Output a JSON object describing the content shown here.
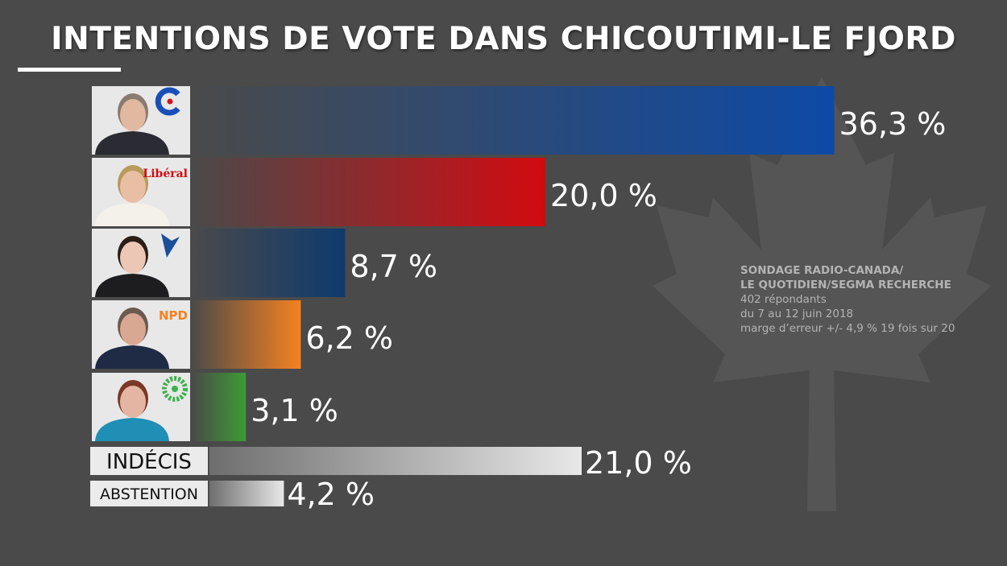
{
  "colors": {
    "background": "#4a4a4a",
    "cpc": "#0d4aa6",
    "liberal": "#d20a11",
    "bloc": "#0f3a6e",
    "npd": "#f58220",
    "green": "#3d9b35",
    "neutral": "#e6e6e6"
  },
  "chart_data": {
    "type": "bar",
    "orientation": "horizontal",
    "title": "INTENTIONS DE VOTE DANS CHICOUTIMI-LE FJORD",
    "unit": "%",
    "candidates": [
      {
        "party_icon": "conservative-logo-icon",
        "logo_text": "",
        "value": 36.3,
        "label": "36,3 %",
        "color": "#0d4aa6"
      },
      {
        "party_icon": "liberal-logo-icon",
        "logo_text": "Libéral",
        "value": 20.0,
        "label": "20,0 %",
        "color": "#d20a11"
      },
      {
        "party_icon": "bloc-logo-icon",
        "logo_text": "",
        "value": 8.7,
        "label": "8,7 %",
        "color": "#0f3a6e"
      },
      {
        "party_icon": "npd-logo-icon",
        "logo_text": "NPD",
        "value": 6.2,
        "label": "6,2 %",
        "color": "#f58220"
      },
      {
        "party_icon": "green-logo-icon",
        "logo_text": "",
        "value": 3.1,
        "label": "3,1 %",
        "color": "#3d9b35"
      }
    ],
    "others": [
      {
        "category": "INDÉCIS",
        "value": 21.0,
        "label": "21,0 %"
      },
      {
        "category": "ABSTENTION",
        "value": 4.2,
        "label": "4,2 %"
      }
    ]
  },
  "source": {
    "line1": "SONDAGE RADIO-CANADA/",
    "line2": "LE QUOTIDIEN/SEGMA RECHERCHE",
    "respondents": "402 répondants",
    "dates": "du 7 au 12 juin 2018",
    "margin": "marge d’erreur +/- 4,9 % 19 fois sur 20"
  }
}
